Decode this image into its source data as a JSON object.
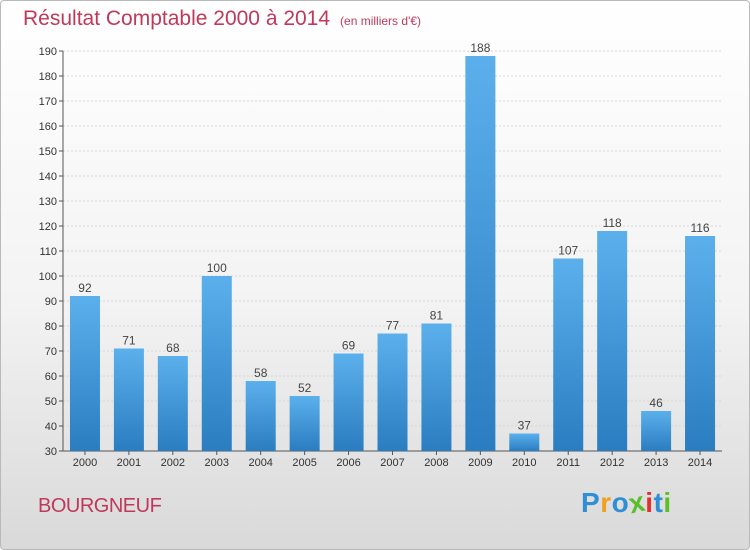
{
  "header": {
    "title": "Résultat Comptable 2000 à 2014",
    "subtitle": "(en milliers d'€)"
  },
  "commune": "BOURGNEUF",
  "logo": {
    "letters": [
      "P",
      "r",
      "o",
      "x",
      "i",
      "t",
      "i"
    ],
    "colors": [
      "#2f8fd6",
      "#f0a020",
      "#2f8fd6",
      "#5bbf2a",
      "#e03030",
      "#2f8fd6",
      "#5bbf2a"
    ]
  },
  "chart_data": {
    "type": "bar",
    "title": "Résultat Comptable 2000 à 2014 (en milliers d'€)",
    "xlabel": "",
    "ylabel": "",
    "categories": [
      "2000",
      "2001",
      "2002",
      "2003",
      "2004",
      "2005",
      "2006",
      "2007",
      "2008",
      "2009",
      "2010",
      "2011",
      "2012",
      "2013",
      "2014"
    ],
    "values": [
      92,
      71,
      68,
      100,
      58,
      52,
      69,
      77,
      81,
      188,
      37,
      107,
      118,
      46,
      116
    ],
    "ylim": [
      30,
      190
    ],
    "yticks": [
      30,
      40,
      50,
      60,
      70,
      80,
      90,
      100,
      110,
      120,
      130,
      140,
      150,
      160,
      170,
      180,
      190
    ],
    "grid": true,
    "bar_color": "#3a94d8"
  }
}
